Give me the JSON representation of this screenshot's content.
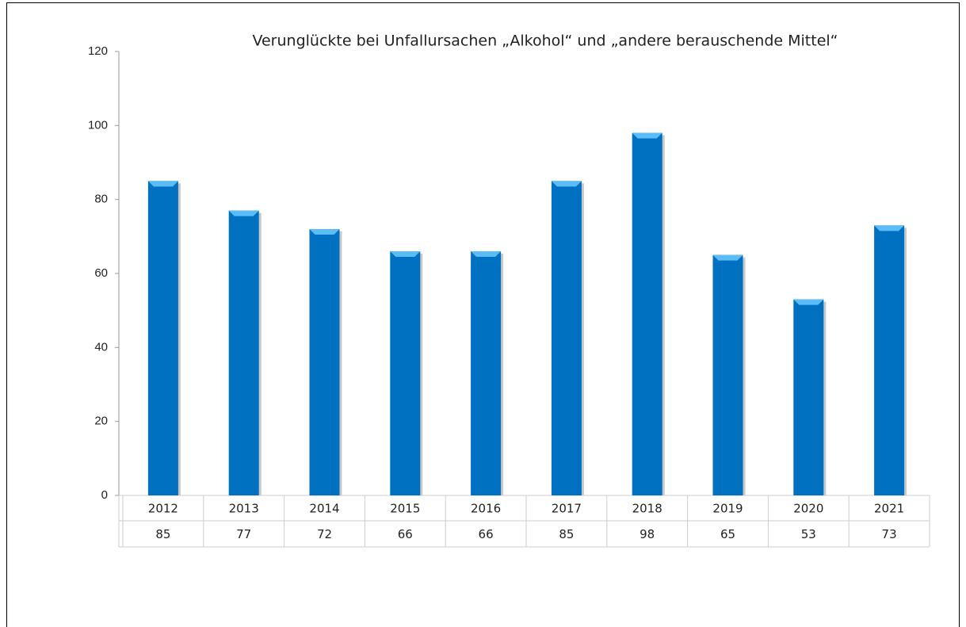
{
  "chart_data": {
    "type": "bar",
    "title": "Verunglückte bei Unfallursachen „Alkohol“ und „andere berauschende Mittel“",
    "categories": [
      "2012",
      "2013",
      "2014",
      "2015",
      "2016",
      "2017",
      "2018",
      "2019",
      "2020",
      "2021"
    ],
    "values": [
      85,
      77,
      72,
      66,
      66,
      85,
      98,
      65,
      53,
      73
    ],
    "color": "#0070c0",
    "ylim": [
      0,
      120
    ],
    "yticks": [
      0,
      20,
      40,
      60,
      80,
      100,
      120
    ],
    "grid": false
  }
}
